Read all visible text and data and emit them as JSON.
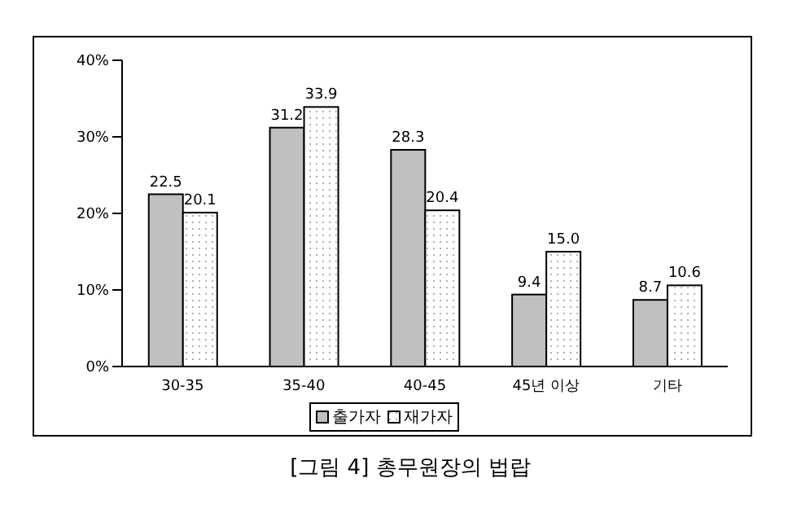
{
  "chart_data": {
    "type": "bar",
    "title": "[그림 4] 총무원장의 법랍",
    "categories": [
      "30-35",
      "35-40",
      "40-45",
      "45년 이상",
      "기타"
    ],
    "series": [
      {
        "name": "출가자",
        "color": "#c0c0c0",
        "values": [
          22.5,
          31.2,
          28.3,
          9.4,
          8.7
        ],
        "value_labels": [
          "22.5",
          "31.2",
          "28.3",
          "9.4",
          "8.7"
        ]
      },
      {
        "name": "재가자",
        "color": "#ffffff",
        "values": [
          20.1,
          33.9,
          20.4,
          15.0,
          10.6
        ],
        "value_labels": [
          "20.1",
          "33.9",
          "20.4",
          "15.0",
          "10.6"
        ]
      }
    ],
    "ylim": [
      0,
      40
    ],
    "yticks": [
      {
        "value": 0,
        "label": "0%"
      },
      {
        "value": 10,
        "label": "10%"
      },
      {
        "value": 20,
        "label": "20%"
      },
      {
        "value": 30,
        "label": "30%"
      },
      {
        "value": 40,
        "label": "40%"
      }
    ],
    "grid": false,
    "legend": "bottom"
  }
}
